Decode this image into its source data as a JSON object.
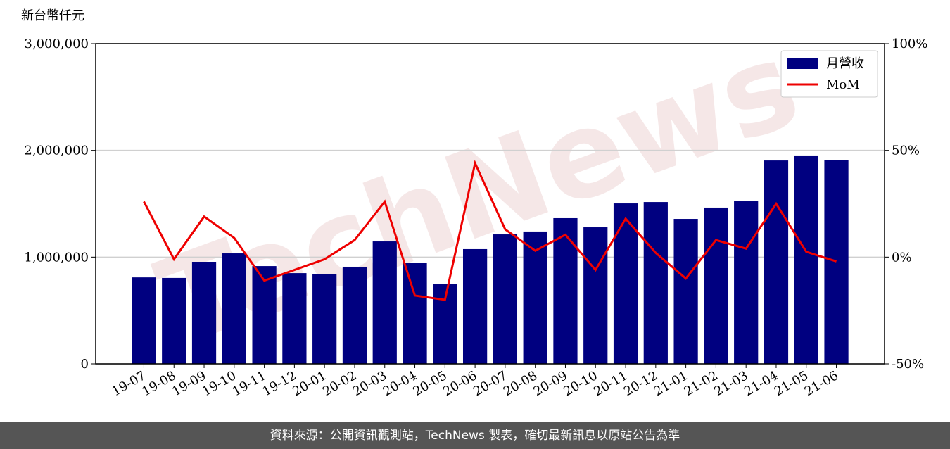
{
  "chart_data": {
    "type": "bar",
    "y_label": "新台幣仟元",
    "watermark": "TechNews",
    "categories": [
      "19-07",
      "19-08",
      "19-09",
      "19-10",
      "19-11",
      "19-12",
      "20-01",
      "20-02",
      "20-03",
      "20-04",
      "20-05",
      "20-06",
      "20-07",
      "20-08",
      "20-09",
      "20-10",
      "20-11",
      "20-12",
      "21-01",
      "21-02",
      "21-03",
      "21-04",
      "21-05",
      "21-06"
    ],
    "series": [
      {
        "name": "月營收",
        "type": "bar",
        "color": "#000080",
        "values": [
          810000,
          805000,
          956000,
          1035000,
          916000,
          850000,
          844000,
          910000,
          1147000,
          943000,
          745000,
          1075000,
          1213000,
          1240000,
          1365000,
          1279000,
          1503000,
          1516000,
          1358000,
          1464000,
          1523000,
          1905000,
          1952000,
          1912000
        ]
      },
      {
        "name": "MoM",
        "type": "line",
        "axis": "y2",
        "color": "#ee0000",
        "values": [
          26,
          -1,
          19,
          9,
          -11,
          -6,
          -1,
          8,
          26,
          -18,
          -20,
          44,
          13,
          3,
          10.5,
          -6,
          18,
          2,
          -10,
          8,
          4,
          25,
          2.5,
          -2
        ]
      }
    ],
    "ylim": [
      0,
      3000000
    ],
    "yticks": [
      0,
      {
        "value": 1000000,
        "label": "1,000,000"
      },
      {
        "value": 2000000,
        "label": "2,000,000"
      },
      {
        "value": 3000000,
        "label": "3,000,000"
      }
    ],
    "y2lim": [
      -50,
      100
    ],
    "y2ticks": [
      {
        "value": -50,
        "label": "-50%"
      },
      {
        "value": 0,
        "label": "0%"
      },
      {
        "value": 50,
        "label": "50%"
      },
      {
        "value": 100,
        "label": "100%"
      }
    ],
    "grid": true,
    "legend": "upper right"
  },
  "footer": "資料來源：公開資訊觀測站，TechNews 製表，確切最新訊息以原站公告為準"
}
